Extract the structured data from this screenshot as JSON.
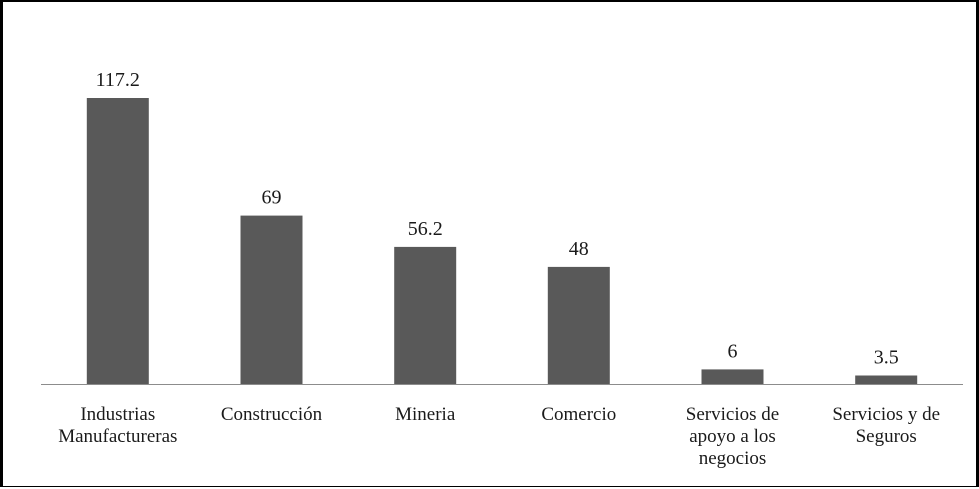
{
  "chart_data": {
    "type": "bar",
    "categories": [
      [
        "Industrias",
        "Manufactureras"
      ],
      [
        "Construcción"
      ],
      [
        "Mineria"
      ],
      [
        "Comercio"
      ],
      [
        "Servicios de",
        "apoyo a los",
        "negocios"
      ],
      [
        "Servicios y de",
        "Seguros"
      ]
    ],
    "values": [
      117.2,
      69,
      56.2,
      48,
      6,
      3.5
    ],
    "value_labels": [
      "117.2",
      "69",
      "56.2",
      "48",
      "6",
      "3.5"
    ],
    "ylim": [
      0,
      117.2
    ],
    "bar_color": "#595959",
    "axis_color": "#8c8c8c",
    "text_color": "#1a1a1a",
    "grid": false,
    "legend": "none"
  }
}
